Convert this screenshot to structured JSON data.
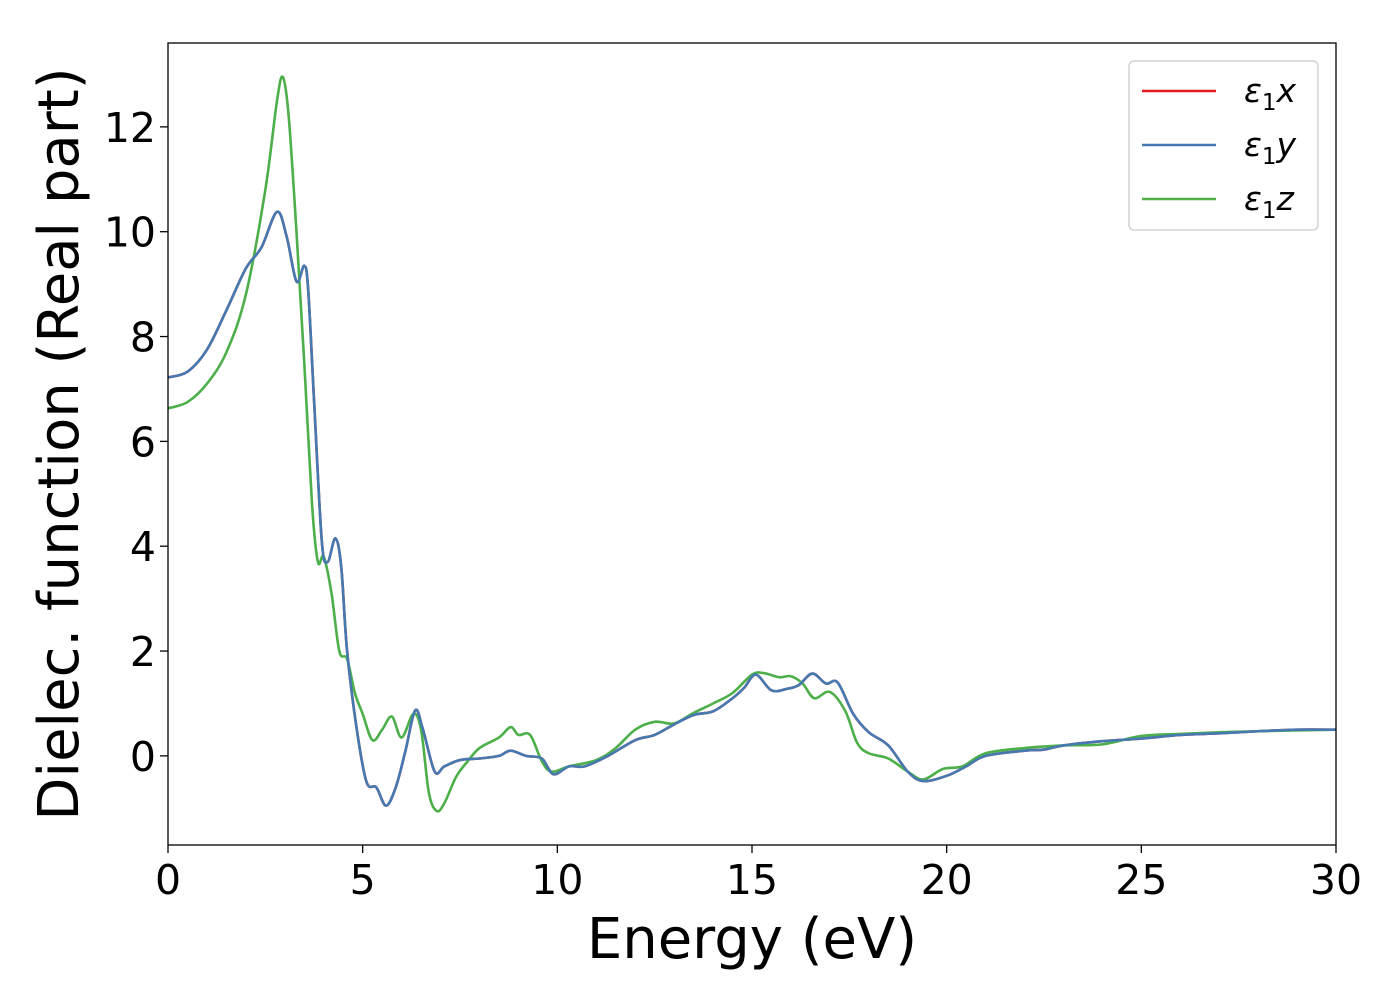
{
  "chart_data": {
    "type": "line",
    "title": "",
    "xlabel": "Energy (eV)",
    "ylabel": "Dielec. function (Real part)",
    "xlim": [
      0,
      30
    ],
    "ylim": [
      -1.7,
      13.6
    ],
    "x_ticks": [
      0,
      5,
      10,
      15,
      20,
      25,
      30
    ],
    "y_ticks": [
      0,
      2,
      4,
      6,
      8,
      10,
      12
    ],
    "grid": false,
    "legend_position": "top-right",
    "series": [
      {
        "name": "ε1x",
        "legend": {
          "base": "ε",
          "sub": "1",
          "axis": "x"
        },
        "color": "#e41a1c",
        "points": [
          [
            0,
            7.22
          ],
          [
            0.5,
            7.33
          ],
          [
            1,
            7.75
          ],
          [
            1.5,
            8.5
          ],
          [
            2,
            9.3
          ],
          [
            2.4,
            9.7
          ],
          [
            2.8,
            10.38
          ],
          [
            3.05,
            9.9
          ],
          [
            3.3,
            9.05
          ],
          [
            3.5,
            9.35
          ],
          [
            3.6,
            8.9
          ],
          [
            3.75,
            6.8
          ],
          [
            3.95,
            4.1
          ],
          [
            4.1,
            3.7
          ],
          [
            4.3,
            4.15
          ],
          [
            4.45,
            3.6
          ],
          [
            4.6,
            2.0
          ],
          [
            4.85,
            0.5
          ],
          [
            5.1,
            -0.5
          ],
          [
            5.35,
            -0.6
          ],
          [
            5.6,
            -0.95
          ],
          [
            5.85,
            -0.6
          ],
          [
            6.1,
            0.1
          ],
          [
            6.35,
            0.87
          ],
          [
            6.55,
            0.5
          ],
          [
            6.85,
            -0.3
          ],
          [
            7.1,
            -0.2
          ],
          [
            7.5,
            -0.08
          ],
          [
            8,
            -0.05
          ],
          [
            8.5,
            0
          ],
          [
            8.8,
            0.1
          ],
          [
            9.2,
            0
          ],
          [
            9.6,
            -0.05
          ],
          [
            9.9,
            -0.35
          ],
          [
            10.3,
            -0.2
          ],
          [
            10.7,
            -0.2
          ],
          [
            11.3,
            0
          ],
          [
            12,
            0.3
          ],
          [
            12.5,
            0.4
          ],
          [
            13,
            0.6
          ],
          [
            13.5,
            0.78
          ],
          [
            14,
            0.85
          ],
          [
            14.5,
            1.1
          ],
          [
            14.8,
            1.3
          ],
          [
            15.1,
            1.55
          ],
          [
            15.5,
            1.25
          ],
          [
            15.9,
            1.28
          ],
          [
            16.2,
            1.35
          ],
          [
            16.55,
            1.57
          ],
          [
            16.9,
            1.38
          ],
          [
            17.2,
            1.4
          ],
          [
            17.6,
            0.8
          ],
          [
            18,
            0.45
          ],
          [
            18.5,
            0.2
          ],
          [
            19,
            -0.3
          ],
          [
            19.4,
            -0.48
          ],
          [
            20,
            -0.38
          ],
          [
            20.5,
            -0.2
          ],
          [
            21,
            0
          ],
          [
            22,
            0.1
          ],
          [
            22.5,
            0.12
          ],
          [
            23,
            0.2
          ],
          [
            24,
            0.28
          ],
          [
            25,
            0.33
          ],
          [
            26,
            0.4
          ],
          [
            27,
            0.43
          ],
          [
            28,
            0.47
          ],
          [
            29,
            0.5
          ],
          [
            30,
            0.5
          ]
        ]
      },
      {
        "name": "ε1y",
        "legend": {
          "base": "ε",
          "sub": "1",
          "axis": "y"
        },
        "color": "#4479b2",
        "points": [
          [
            0,
            7.22
          ],
          [
            0.5,
            7.33
          ],
          [
            1,
            7.75
          ],
          [
            1.5,
            8.5
          ],
          [
            2,
            9.3
          ],
          [
            2.4,
            9.7
          ],
          [
            2.8,
            10.38
          ],
          [
            3.05,
            9.9
          ],
          [
            3.3,
            9.05
          ],
          [
            3.5,
            9.35
          ],
          [
            3.6,
            8.9
          ],
          [
            3.75,
            6.8
          ],
          [
            3.95,
            4.1
          ],
          [
            4.1,
            3.7
          ],
          [
            4.3,
            4.15
          ],
          [
            4.45,
            3.6
          ],
          [
            4.6,
            2.0
          ],
          [
            4.85,
            0.5
          ],
          [
            5.1,
            -0.5
          ],
          [
            5.35,
            -0.6
          ],
          [
            5.6,
            -0.95
          ],
          [
            5.85,
            -0.6
          ],
          [
            6.1,
            0.1
          ],
          [
            6.35,
            0.87
          ],
          [
            6.55,
            0.5
          ],
          [
            6.85,
            -0.3
          ],
          [
            7.1,
            -0.2
          ],
          [
            7.5,
            -0.08
          ],
          [
            8,
            -0.05
          ],
          [
            8.5,
            0
          ],
          [
            8.8,
            0.1
          ],
          [
            9.2,
            0
          ],
          [
            9.6,
            -0.05
          ],
          [
            9.9,
            -0.35
          ],
          [
            10.3,
            -0.2
          ],
          [
            10.7,
            -0.2
          ],
          [
            11.3,
            0
          ],
          [
            12,
            0.3
          ],
          [
            12.5,
            0.4
          ],
          [
            13,
            0.6
          ],
          [
            13.5,
            0.78
          ],
          [
            14,
            0.85
          ],
          [
            14.5,
            1.1
          ],
          [
            14.8,
            1.3
          ],
          [
            15.1,
            1.55
          ],
          [
            15.5,
            1.25
          ],
          [
            15.9,
            1.28
          ],
          [
            16.2,
            1.35
          ],
          [
            16.55,
            1.57
          ],
          [
            16.9,
            1.38
          ],
          [
            17.2,
            1.4
          ],
          [
            17.6,
            0.8
          ],
          [
            18,
            0.45
          ],
          [
            18.5,
            0.2
          ],
          [
            19,
            -0.3
          ],
          [
            19.4,
            -0.48
          ],
          [
            20,
            -0.38
          ],
          [
            20.5,
            -0.2
          ],
          [
            21,
            0
          ],
          [
            22,
            0.1
          ],
          [
            22.5,
            0.12
          ],
          [
            23,
            0.2
          ],
          [
            24,
            0.28
          ],
          [
            25,
            0.33
          ],
          [
            26,
            0.4
          ],
          [
            27,
            0.43
          ],
          [
            28,
            0.47
          ],
          [
            29,
            0.5
          ],
          [
            30,
            0.5
          ]
        ]
      },
      {
        "name": "ε1z",
        "legend": {
          "base": "ε",
          "sub": "1",
          "axis": "z"
        },
        "color": "#4daf4a",
        "points": [
          [
            0,
            6.63
          ],
          [
            0.5,
            6.75
          ],
          [
            1,
            7.1
          ],
          [
            1.5,
            7.7
          ],
          [
            2,
            8.8
          ],
          [
            2.5,
            10.8
          ],
          [
            2.8,
            12.5
          ],
          [
            2.95,
            12.95
          ],
          [
            3.1,
            12.2
          ],
          [
            3.3,
            10.0
          ],
          [
            3.5,
            7.5
          ],
          [
            3.7,
            4.8
          ],
          [
            3.85,
            3.7
          ],
          [
            4.0,
            3.8
          ],
          [
            4.2,
            3.1
          ],
          [
            4.4,
            2.0
          ],
          [
            4.6,
            1.85
          ],
          [
            4.8,
            1.2
          ],
          [
            5.0,
            0.8
          ],
          [
            5.25,
            0.3
          ],
          [
            5.5,
            0.5
          ],
          [
            5.75,
            0.75
          ],
          [
            6.0,
            0.35
          ],
          [
            6.3,
            0.8
          ],
          [
            6.5,
            0.5
          ],
          [
            6.7,
            -0.7
          ],
          [
            6.9,
            -1.05
          ],
          [
            7.1,
            -0.9
          ],
          [
            7.4,
            -0.4
          ],
          [
            7.7,
            -0.1
          ],
          [
            8.0,
            0.15
          ],
          [
            8.5,
            0.35
          ],
          [
            8.8,
            0.55
          ],
          [
            9.0,
            0.4
          ],
          [
            9.3,
            0.4
          ],
          [
            9.6,
            -0.1
          ],
          [
            9.85,
            -0.3
          ],
          [
            10.3,
            -0.2
          ],
          [
            11.0,
            -0.08
          ],
          [
            11.5,
            0.15
          ],
          [
            12.0,
            0.5
          ],
          [
            12.5,
            0.65
          ],
          [
            13.0,
            0.62
          ],
          [
            13.5,
            0.82
          ],
          [
            14.0,
            1.0
          ],
          [
            14.5,
            1.2
          ],
          [
            15.0,
            1.55
          ],
          [
            15.3,
            1.58
          ],
          [
            15.7,
            1.5
          ],
          [
            16.0,
            1.52
          ],
          [
            16.3,
            1.38
          ],
          [
            16.6,
            1.1
          ],
          [
            17.0,
            1.22
          ],
          [
            17.4,
            0.85
          ],
          [
            17.7,
            0.25
          ],
          [
            18.0,
            0.05
          ],
          [
            18.5,
            -0.05
          ],
          [
            19.0,
            -0.3
          ],
          [
            19.4,
            -0.45
          ],
          [
            19.9,
            -0.25
          ],
          [
            20.4,
            -0.2
          ],
          [
            21.0,
            0.05
          ],
          [
            22.0,
            0.15
          ],
          [
            23.0,
            0.2
          ],
          [
            24.0,
            0.22
          ],
          [
            25.0,
            0.38
          ],
          [
            26.0,
            0.42
          ],
          [
            27.0,
            0.45
          ],
          [
            28.0,
            0.47
          ],
          [
            30.0,
            0.5
          ]
        ]
      }
    ]
  }
}
